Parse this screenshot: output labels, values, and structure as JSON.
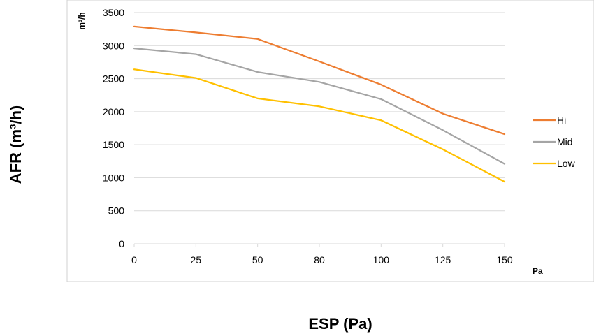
{
  "chart_data": {
    "type": "line",
    "title": "",
    "xlabel": "ESP (Pa)",
    "ylabel": "AFR (m³/h)",
    "x_unit": "Pa",
    "y_unit": "m³/h",
    "categories": [
      "0",
      "25",
      "50",
      "80",
      "100",
      "125",
      "150"
    ],
    "ylim": [
      0,
      3500
    ],
    "yticks": [
      "0",
      "500",
      "1000",
      "1500",
      "2000",
      "2500",
      "3000",
      "3500"
    ],
    "grid": true,
    "legend_position": "right",
    "series": [
      {
        "name": "Hi",
        "color": "#ED7D31",
        "values": [
          3290,
          3200,
          3100,
          2760,
          2410,
          1970,
          1660
        ]
      },
      {
        "name": "Mid",
        "color": "#A5A5A5",
        "values": [
          2960,
          2870,
          2600,
          2450,
          2190,
          1720,
          1210
        ]
      },
      {
        "name": "Low",
        "color": "#FFC000",
        "values": [
          2640,
          2510,
          2200,
          2080,
          1870,
          1430,
          940
        ]
      }
    ]
  }
}
